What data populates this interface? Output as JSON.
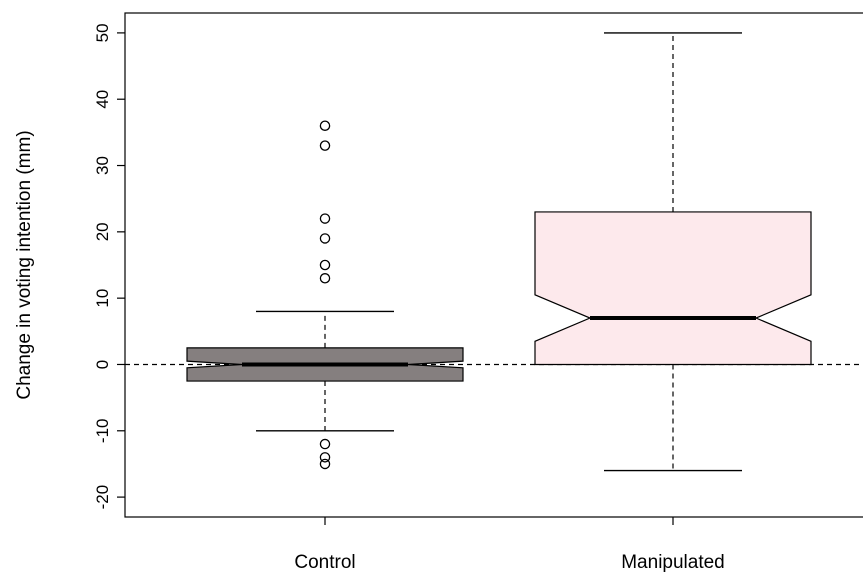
{
  "chart_data": {
    "type": "boxplot",
    "ylabel": "Change in voting intention (mm)",
    "ylim": [
      -23,
      53
    ],
    "yticks": [
      -20,
      -10,
      0,
      10,
      20,
      30,
      40,
      50
    ],
    "y_tick_labels": [
      "-20",
      "-10",
      "0",
      "10",
      "20",
      "30",
      "40",
      "50"
    ],
    "notched": true,
    "reference_line": 0,
    "groups": [
      {
        "label": "Control",
        "fill": "#857f7f",
        "q1": -2.5,
        "median": 0,
        "q3": 2.5,
        "notch_low": -0.5,
        "notch_high": 0.5,
        "whisker_low": -10,
        "whisker_high": 8,
        "outliers": [
          13,
          15,
          19,
          22,
          33,
          36,
          -12,
          -14,
          -15
        ]
      },
      {
        "label": "Manipulated",
        "fill": "#fde9ec",
        "q1": 0,
        "median": 7,
        "q3": 23,
        "notch_low": 3.5,
        "notch_high": 10.5,
        "whisker_low": -16,
        "whisker_high": 50,
        "outliers": []
      }
    ]
  }
}
